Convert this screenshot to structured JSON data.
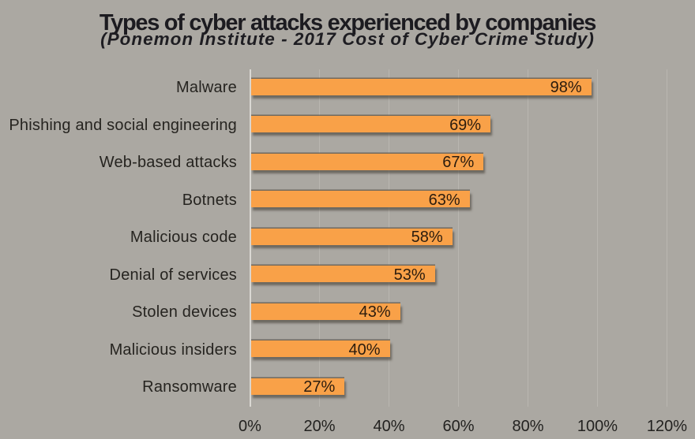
{
  "chart_data": {
    "type": "bar",
    "orientation": "horizontal",
    "title": "Types of cyber attacks experienced by companies",
    "subtitle": "(Ponemon Institute - 2017 Cost of Cyber Crime Study)",
    "categories": [
      "Malware",
      "Phishing and social engineering",
      "Web-based attacks",
      "Botnets",
      "Malicious code",
      "Denial of services",
      "Stolen devices",
      "Malicious insiders",
      "Ransomware"
    ],
    "values": [
      98,
      69,
      67,
      63,
      58,
      53,
      43,
      40,
      27
    ],
    "value_labels": [
      "98%",
      "69%",
      "67%",
      "63%",
      "58%",
      "53%",
      "43%",
      "40%",
      "27%"
    ],
    "xlabel": "",
    "ylabel": "",
    "xlim": [
      0,
      120
    ],
    "xtick_step": 20,
    "xtick_labels": [
      "0%",
      "20%",
      "40%",
      "60%",
      "80%",
      "100%",
      "120%"
    ],
    "grid": "vertical",
    "legend": "none",
    "colors": {
      "background": "#aba8a2",
      "bar": "#f9a148",
      "title_text": "#1c1b20",
      "label_text": "#262420",
      "value_text": "#2b1c0e",
      "axis_line": "#dad8d3",
      "gridline": "#b9b6b0"
    }
  }
}
